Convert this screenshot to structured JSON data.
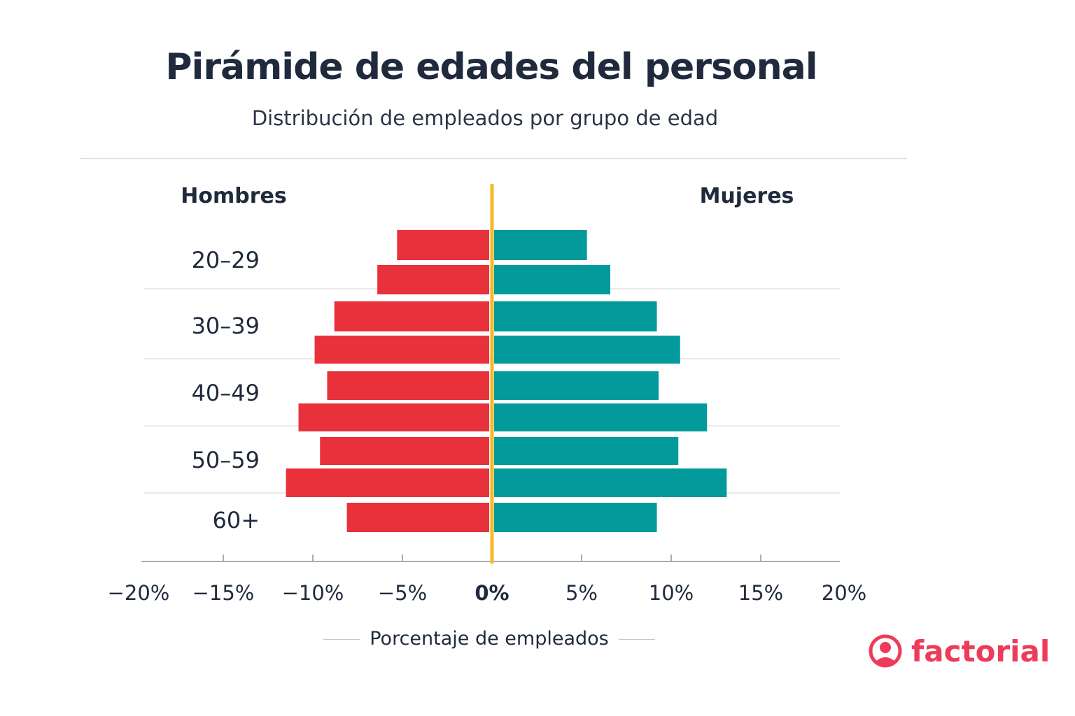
{
  "header": {
    "title": "Pirámide de edades del personal",
    "subtitle": "Distribución de empleados por grupo de edad"
  },
  "chart_data": {
    "type": "bar",
    "orientation": "horizontal",
    "style": "population-pyramid",
    "title": "Pirámide de edades del personal",
    "subtitle": "Distribución de empleados por grupo de edad",
    "xlabel": "Porcentaje de empleados",
    "ylabel": "",
    "xlim": [
      -20,
      20
    ],
    "xticks": [
      -20,
      -15,
      -10,
      -5,
      0,
      5,
      10,
      15,
      20
    ],
    "xtick_labels": [
      "−20%",
      "−15%",
      "−10%",
      "−5%",
      "0%",
      "5%",
      "10%",
      "15%",
      "20%"
    ],
    "group_labels": [
      "20–29",
      "30–39",
      "40–49",
      "50–59",
      "60+"
    ],
    "bar_group_index": [
      0,
      0,
      1,
      1,
      2,
      2,
      3,
      3,
      4
    ],
    "series": [
      {
        "name": "Hombres",
        "color": "#e8313a",
        "values": [
          -5.3,
          -6.4,
          -8.8,
          -9.9,
          -9.2,
          -10.8,
          -9.6,
          -11.5,
          -8.1
        ]
      },
      {
        "name": "Mujeres",
        "color": "#039a9c",
        "values": [
          5.3,
          6.6,
          9.2,
          10.5,
          9.3,
          12.0,
          10.4,
          13.1,
          9.2
        ]
      }
    ],
    "center_line_color": "#f7b928",
    "grid": "horizontal separators between age groups",
    "legend": "side labels at top (Hombres left, Mujeres right)"
  },
  "brand": {
    "name": "factorial",
    "color": "#ee3b5a"
  }
}
